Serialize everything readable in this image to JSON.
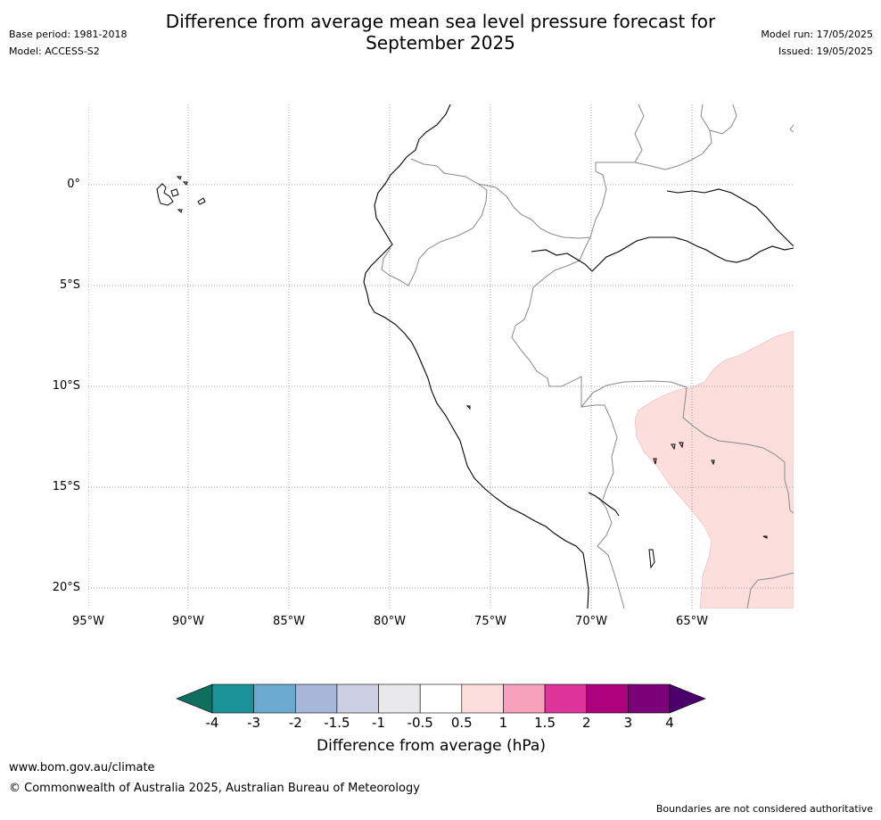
{
  "header": {
    "title_line1": "Difference from average mean sea level pressure forecast for",
    "title_line2": "September 2025",
    "base_period": "Base period: 1981-2018",
    "model": "Model: ACCESS-S2",
    "model_run": "Model run: 17/05/2025",
    "issued": "Issued: 19/05/2025"
  },
  "map": {
    "lat_labels": [
      "0°",
      "5°S",
      "10°S",
      "15°S",
      "20°S"
    ],
    "lon_labels": [
      "95°W",
      "90°W",
      "85°W",
      "80°W",
      "75°W",
      "70°W",
      "65°W"
    ],
    "anomaly_region_color": "#fcdfdd",
    "anomaly_region_value": "0.5 to 1 hPa"
  },
  "colorbar": {
    "ticks": [
      "-4",
      "-3",
      "-2",
      "-1.5",
      "-1",
      "-0.5",
      "0.5",
      "1",
      "1.5",
      "2",
      "3",
      "4"
    ],
    "colors": [
      "#0e6f5f",
      "#1a9297",
      "#6aaad1",
      "#a6b7da",
      "#cdd0e5",
      "#e9e8eb",
      "#ffffff",
      "#fcdfdd",
      "#f7a1bc",
      "#dd349a",
      "#ae017e",
      "#7a0177",
      "#49006a"
    ],
    "label": "Difference from average (hPa)"
  },
  "footer": {
    "url": "www.bom.gov.au/climate",
    "copyright": "© Commonwealth of Australia 2025, Australian Bureau of Meteorology",
    "disclaimer": "Boundaries are not considered authoritative"
  }
}
